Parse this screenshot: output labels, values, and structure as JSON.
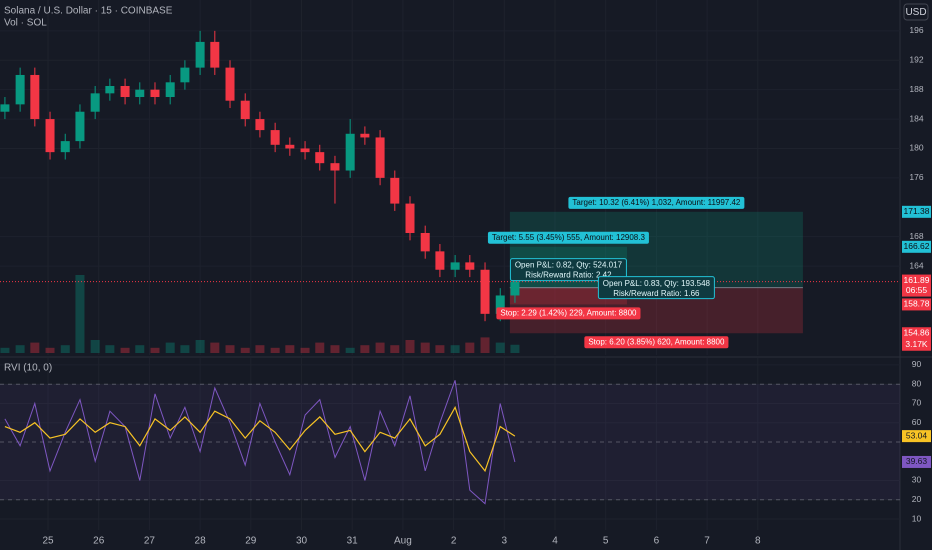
{
  "chart_data": [
    {
      "type": "candlestick",
      "title": "Solana / U.S. Dollar · 15 · COINBASE",
      "currency": "USD",
      "x": [
        -0.85,
        -0.55,
        -0.26,
        0.04,
        0.34,
        0.63,
        0.93,
        1.22,
        1.52,
        1.81,
        2.11,
        2.41,
        2.7,
        3.0,
        3.29,
        3.59,
        3.89,
        4.18,
        4.48,
        4.77,
        5.07,
        5.36,
        5.66,
        5.96,
        6.25,
        6.55,
        6.84,
        7.14,
        7.44,
        7.73,
        8.03,
        8.32,
        8.62,
        8.92,
        9.21
      ],
      "open": [
        185,
        186,
        190,
        184,
        179.5,
        181,
        185,
        187.5,
        188.5,
        187,
        188,
        187,
        189,
        191,
        194.5,
        191,
        186.5,
        184,
        182.5,
        180.5,
        180,
        179.5,
        178,
        177,
        182,
        181.5,
        176,
        172.5,
        168.5,
        166,
        163.5,
        164.5,
        163.5,
        157.5,
        160
      ],
      "high": [
        187,
        191,
        191,
        185,
        182,
        186,
        188.5,
        189.5,
        189.5,
        189,
        189,
        190,
        192,
        196,
        196,
        192,
        187.5,
        185,
        183.5,
        181.5,
        181,
        180.5,
        179,
        184,
        183,
        182.5,
        177,
        173.5,
        169.5,
        167,
        165.5,
        165.5,
        164.5,
        161,
        162.9
      ],
      "low": [
        184,
        185,
        183,
        178.5,
        178.5,
        180,
        184,
        186.5,
        186,
        186,
        186,
        186,
        188,
        190,
        190,
        185.5,
        183,
        181.5,
        179.5,
        179,
        178.5,
        177,
        172.5,
        176,
        180.5,
        175,
        171.5,
        167.5,
        165,
        162.5,
        162.5,
        162.5,
        156.5,
        156.5,
        159
      ],
      "close": [
        186,
        190,
        184,
        179.5,
        181,
        185,
        187.5,
        188.5,
        187,
        188,
        187,
        189,
        191,
        194.5,
        191,
        186.5,
        184,
        182.5,
        180.5,
        180,
        179.5,
        178,
        177,
        182,
        181.5,
        176,
        172.5,
        168.5,
        166,
        163.5,
        164.5,
        163.5,
        157.5,
        160,
        161.9
      ],
      "up_color": "#089981",
      "down_color": "#f23645",
      "xlim": [
        -0.947,
        16.805
      ],
      "ylim": [
        151.9,
        200.2
      ],
      "yticks": [
        196,
        192,
        188,
        184,
        180,
        176,
        168,
        164
      ],
      "grid": true,
      "volume": {
        "name": "Vol · SOL",
        "lim": [
          0,
          45
        ],
        "values": [
          2,
          3,
          4,
          2,
          3,
          30,
          5,
          3,
          2,
          3,
          2,
          4,
          3,
          5,
          4,
          3,
          2,
          3,
          2,
          3,
          2,
          4,
          3,
          2,
          3,
          4,
          3,
          5,
          4,
          3,
          3,
          4,
          6,
          4,
          3.17
        ],
        "value_labels": [
          null,
          null,
          null,
          null,
          null,
          null,
          null,
          null,
          null,
          null,
          null,
          null,
          null,
          null,
          null,
          null,
          null,
          null,
          null,
          null,
          null,
          null,
          null,
          null,
          null,
          null,
          null,
          null,
          null,
          null,
          null,
          null,
          null,
          null,
          "3.17K"
        ]
      },
      "last_price": {
        "value": 161.89,
        "countdown": "06:55",
        "color": "#f23645"
      },
      "positions": [
        {
          "start": 9.11,
          "end": 11.42,
          "entry": 161.07,
          "target": 166.62,
          "stop": 158.78,
          "target_label": "Target: 5.55 (3.45%) 555, Amount: 12908.3",
          "stop_label": "Stop: 2.29 (1.42%) 229, Amount: 8800",
          "open_label": [
            "Open P&L: 0.82, Qty: 524.017",
            "Risk/Reward Ratio: 2.42"
          ]
        },
        {
          "start": 9.11,
          "end": 14.89,
          "entry": 161.06,
          "target": 171.38,
          "stop": 154.86,
          "target_label": "Target: 10.32 (6.41%) 1,032, Amount: 11997.42",
          "stop_label": "Stop: 6.20 (3.85%) 620, Amount: 8800",
          "open_label": [
            "Open P&L: 0.83, Qty: 193.548",
            "Risk/Reward Ratio: 1.66"
          ]
        }
      ]
    },
    {
      "type": "line",
      "title": "RVI (10, 0)",
      "x": [
        -0.85,
        -0.55,
        -0.26,
        0.04,
        0.34,
        0.63,
        0.93,
        1.22,
        1.52,
        1.81,
        2.11,
        2.41,
        2.7,
        3.0,
        3.29,
        3.59,
        3.89,
        4.18,
        4.48,
        4.77,
        5.07,
        5.36,
        5.66,
        5.96,
        6.25,
        6.55,
        6.84,
        7.14,
        7.44,
        7.73,
        8.03,
        8.32,
        8.62,
        8.92,
        9.21
      ],
      "series": [
        {
          "color": "#7e57c2",
          "values": [
            62,
            48,
            70,
            35,
            55,
            72,
            40,
            66,
            58,
            30,
            75,
            52,
            68,
            45,
            78,
            60,
            38,
            70,
            50,
            33,
            64,
            72,
            42,
            58,
            30,
            66,
            48,
            74,
            35,
            60,
            82,
            25,
            18,
            70,
            39.63
          ]
        },
        {
          "color": "#f7c325",
          "values": [
            58,
            55,
            60,
            52,
            54,
            62,
            55,
            60,
            58,
            48,
            62,
            56,
            63,
            55,
            66,
            62,
            52,
            61,
            55,
            46,
            56,
            63,
            54,
            56,
            45,
            55,
            52,
            62,
            48,
            54,
            68,
            45,
            35,
            58,
            53.04
          ]
        }
      ],
      "levels": [
        80,
        50,
        20
      ],
      "xlim": [
        -0.947,
        16.805
      ],
      "ylim": [
        4.3,
        93.6
      ],
      "yticks": [
        90,
        80,
        70,
        60,
        30,
        20,
        10
      ],
      "grid": true,
      "xticks": [
        {
          "value": 0,
          "label": "25"
        },
        {
          "value": 1,
          "label": "26"
        },
        {
          "value": 2,
          "label": "27"
        },
        {
          "value": 3,
          "label": "28"
        },
        {
          "value": 4,
          "label": "29"
        },
        {
          "value": 5,
          "label": "30"
        },
        {
          "value": 6,
          "label": "31"
        },
        {
          "value": 7,
          "label": "Aug"
        },
        {
          "value": 8,
          "label": "2"
        },
        {
          "value": 9,
          "label": "3"
        },
        {
          "value": 10,
          "label": "4"
        },
        {
          "value": 11,
          "label": "5"
        },
        {
          "value": 12,
          "label": "6"
        },
        {
          "value": 13,
          "label": "7"
        },
        {
          "value": 14,
          "label": "8"
        }
      ]
    }
  ]
}
